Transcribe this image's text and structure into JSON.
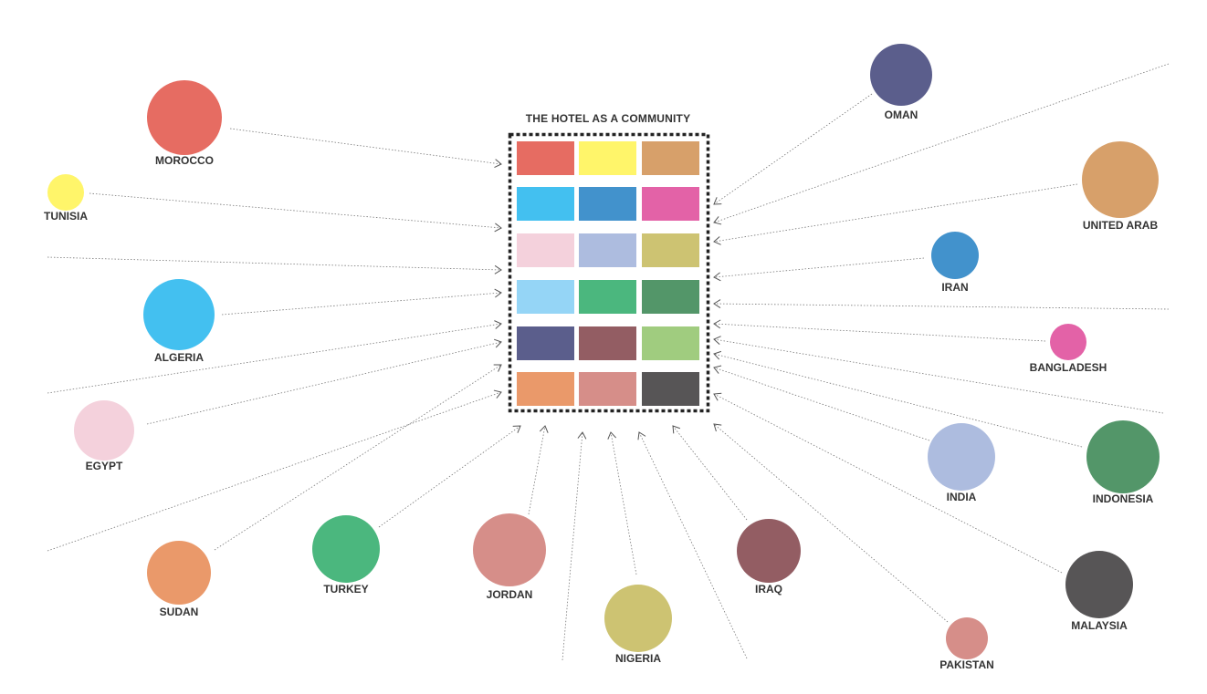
{
  "title": "THE HOTEL AS A COMMUNITY",
  "grid": [
    [
      "#E66C62",
      "#FFF56A",
      "#D7A06A"
    ],
    [
      "#43C0F0",
      "#4292CC",
      "#E362A7"
    ],
    [
      "#F4D1DC",
      "#ADBCDF",
      "#CDC372"
    ],
    [
      "#95D5F6",
      "#4BB77E",
      "#539669"
    ],
    [
      "#5B5E8C",
      "#935D63",
      "#A0CC7F"
    ],
    [
      "#EA996A",
      "#D68E89",
      "#575556"
    ]
  ],
  "nodes": [
    {
      "label": "MOROCCO",
      "color": "#E66C62"
    },
    {
      "label": "TUNISIA",
      "color": "#FFF56A"
    },
    {
      "label": "ALGERIA",
      "color": "#43C0F0"
    },
    {
      "label": "EGYPT",
      "color": "#F4D1DC"
    },
    {
      "label": "SUDAN",
      "color": "#EA996A"
    },
    {
      "label": "TURKEY",
      "color": "#4BB77E"
    },
    {
      "label": "JORDAN",
      "color": "#D68E89"
    },
    {
      "label": "NIGERIA",
      "color": "#CDC372"
    },
    {
      "label": "IRAQ",
      "color": "#935D63"
    },
    {
      "label": "PAKISTAN",
      "color": "#D68E89"
    },
    {
      "label": "MALAYSIA",
      "color": "#575556"
    },
    {
      "label": "INDONESIA",
      "color": "#539669"
    },
    {
      "label": "INDIA",
      "color": "#ADBCDF"
    },
    {
      "label": "BANGLADESH",
      "color": "#E362A7"
    },
    {
      "label": "IRAN",
      "color": "#4292CC"
    },
    {
      "label": "UNITED ARAB",
      "color": "#D7A06A"
    },
    {
      "label": "OMAN",
      "color": "#5B5E8C"
    }
  ]
}
